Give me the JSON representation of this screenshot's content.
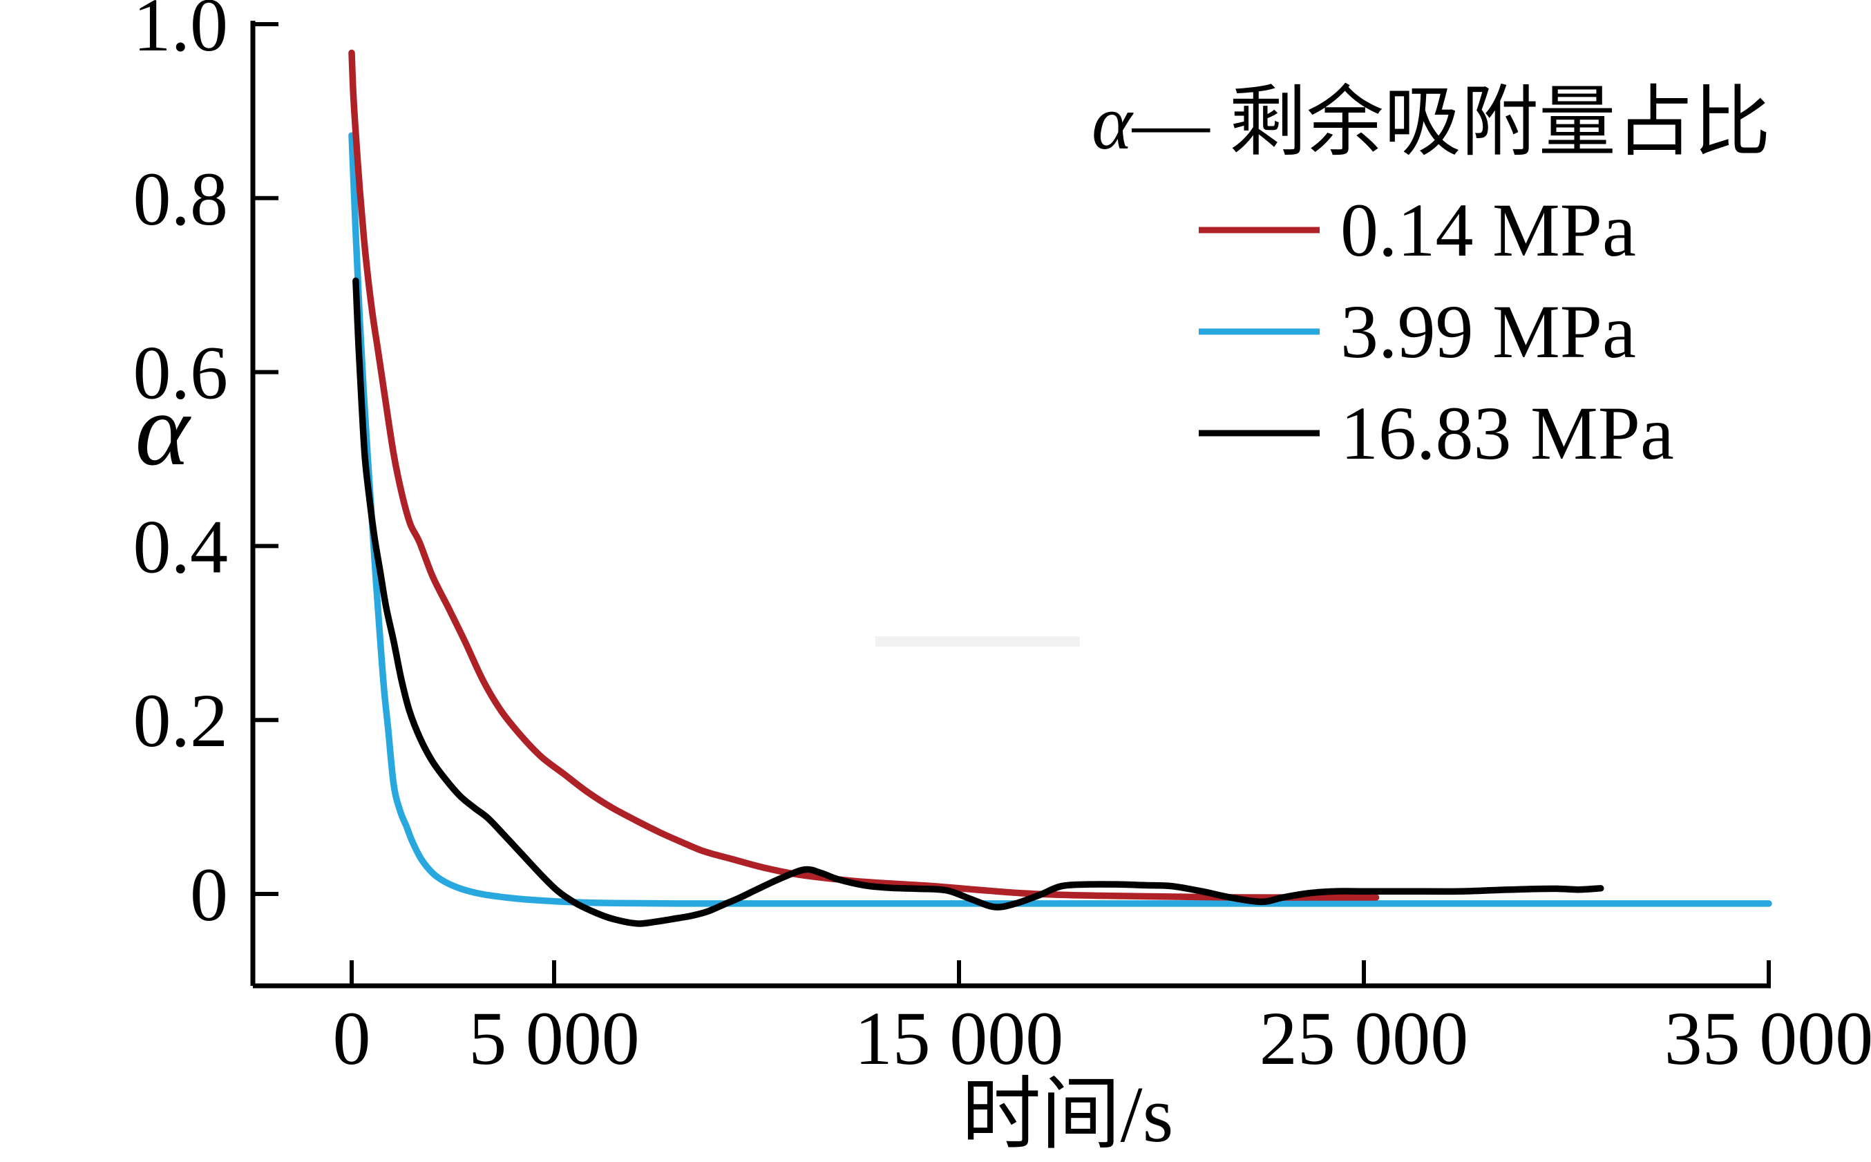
{
  "figure": {
    "background": "#ffffff",
    "axis_color": "#000000",
    "watermark_color": "#f2f2f2"
  },
  "chart_data": {
    "type": "line",
    "title": "",
    "xlabel": "时间/s",
    "ylabel": "α",
    "xlim": [
      -2450,
      35000
    ],
    "ylim": [
      -0.106,
      1.002
    ],
    "grid": false,
    "legend_position": "upper right",
    "legend_title_alpha": "α",
    "legend_title_rest": "— 剩余吸附量占比",
    "x_ticks": [
      {
        "value": 0,
        "label": "0"
      },
      {
        "value": 5000,
        "label": "5 000"
      },
      {
        "value": 15000,
        "label": "15 000"
      },
      {
        "value": 25000,
        "label": "25 000"
      },
      {
        "value": 35000,
        "label": "35 000"
      }
    ],
    "y_ticks": [
      {
        "value": 0,
        "label": "0"
      },
      {
        "value": 0.2,
        "label": "0.2"
      },
      {
        "value": 0.4,
        "label": "0.4"
      },
      {
        "value": 0.6,
        "label": "0.6"
      },
      {
        "value": 0.8,
        "label": "0.8"
      },
      {
        "value": 1.0,
        "label": "1.0"
      }
    ],
    "series": [
      {
        "name": "3.99 MPa",
        "color": "#29a8e0",
        "points": [
          [
            0,
            0.872
          ],
          [
            100,
            0.76
          ],
          [
            200,
            0.66
          ],
          [
            300,
            0.575
          ],
          [
            400,
            0.5
          ],
          [
            500,
            0.43
          ],
          [
            600,
            0.36
          ],
          [
            700,
            0.295
          ],
          [
            800,
            0.235
          ],
          [
            900,
            0.19
          ],
          [
            1040,
            0.125
          ],
          [
            1200,
            0.095
          ],
          [
            1350,
            0.078
          ],
          [
            1500,
            0.06
          ],
          [
            1720,
            0.04
          ],
          [
            2000,
            0.024
          ],
          [
            2300,
            0.014
          ],
          [
            2700,
            0.006
          ],
          [
            3200,
            0.0
          ],
          [
            3800,
            -0.004
          ],
          [
            4500,
            -0.007
          ],
          [
            5500,
            -0.0095
          ],
          [
            6500,
            -0.0105
          ],
          [
            8000,
            -0.011
          ],
          [
            10000,
            -0.011
          ],
          [
            12500,
            -0.011
          ],
          [
            15000,
            -0.011
          ],
          [
            17500,
            -0.011
          ],
          [
            20000,
            -0.011
          ],
          [
            22500,
            -0.011
          ],
          [
            25000,
            -0.011
          ],
          [
            27500,
            -0.011
          ],
          [
            30000,
            -0.011
          ],
          [
            32500,
            -0.011
          ],
          [
            35000,
            -0.011
          ]
        ]
      },
      {
        "name": "0.14 MPa",
        "color": "#ae2127",
        "points": [
          [
            0,
            0.967
          ],
          [
            40,
            0.92
          ],
          [
            100,
            0.875
          ],
          [
            200,
            0.81
          ],
          [
            300,
            0.755
          ],
          [
            400,
            0.71
          ],
          [
            520,
            0.665
          ],
          [
            650,
            0.625
          ],
          [
            800,
            0.578
          ],
          [
            1040,
            0.505
          ],
          [
            1250,
            0.458
          ],
          [
            1450,
            0.425
          ],
          [
            1670,
            0.405
          ],
          [
            2000,
            0.365
          ],
          [
            2400,
            0.328
          ],
          [
            2800,
            0.29
          ],
          [
            3250,
            0.245
          ],
          [
            3700,
            0.21
          ],
          [
            4220,
            0.18
          ],
          [
            4700,
            0.157
          ],
          [
            5240,
            0.138
          ],
          [
            5800,
            0.118
          ],
          [
            6400,
            0.1
          ],
          [
            7000,
            0.085
          ],
          [
            7600,
            0.071
          ],
          [
            8130,
            0.06
          ],
          [
            8700,
            0.049
          ],
          [
            9400,
            0.04
          ],
          [
            10200,
            0.03
          ],
          [
            11070,
            0.022
          ],
          [
            12380,
            0.015
          ],
          [
            13300,
            0.012
          ],
          [
            14350,
            0.009
          ],
          [
            15400,
            0.005
          ],
          [
            16510,
            0.001
          ],
          [
            17530,
            -0.001
          ],
          [
            18500,
            -0.002
          ],
          [
            20000,
            -0.003
          ],
          [
            22000,
            -0.004
          ],
          [
            23500,
            -0.004
          ],
          [
            25300,
            -0.004
          ]
        ]
      },
      {
        "name": "16.83 MPa",
        "color": "#000000",
        "points": [
          [
            100,
            0.705
          ],
          [
            170,
            0.63
          ],
          [
            250,
            0.56
          ],
          [
            330,
            0.5
          ],
          [
            450,
            0.45
          ],
          [
            570,
            0.408
          ],
          [
            700,
            0.372
          ],
          [
            850,
            0.33
          ],
          [
            1040,
            0.29
          ],
          [
            1230,
            0.246
          ],
          [
            1430,
            0.21
          ],
          [
            1700,
            0.178
          ],
          [
            2000,
            0.152
          ],
          [
            2350,
            0.13
          ],
          [
            2690,
            0.112
          ],
          [
            3030,
            0.099
          ],
          [
            3370,
            0.087
          ],
          [
            3800,
            0.066
          ],
          [
            4200,
            0.046
          ],
          [
            4700,
            0.021
          ],
          [
            5100,
            0.003
          ],
          [
            5510,
            -0.01
          ],
          [
            5900,
            -0.019
          ],
          [
            6400,
            -0.028
          ],
          [
            7040,
            -0.034
          ],
          [
            7500,
            -0.032
          ],
          [
            7900,
            -0.029
          ],
          [
            8400,
            -0.025
          ],
          [
            8800,
            -0.02
          ],
          [
            9200,
            -0.012
          ],
          [
            9600,
            -0.004
          ],
          [
            10000,
            0.005
          ],
          [
            10600,
            0.018
          ],
          [
            11190,
            0.028
          ],
          [
            11600,
            0.024
          ],
          [
            12000,
            0.017
          ],
          [
            12650,
            0.01
          ],
          [
            13300,
            0.007
          ],
          [
            14000,
            0.006
          ],
          [
            14700,
            0.004
          ],
          [
            15300,
            -0.006
          ],
          [
            15880,
            -0.015
          ],
          [
            16400,
            -0.011
          ],
          [
            17000,
            -0.001
          ],
          [
            17530,
            0.009
          ],
          [
            18200,
            0.011
          ],
          [
            18900,
            0.011
          ],
          [
            19600,
            0.01
          ],
          [
            20255,
            0.009
          ],
          [
            21000,
            0.003
          ],
          [
            21700,
            -0.004
          ],
          [
            22470,
            -0.009
          ],
          [
            23000,
            -0.004
          ],
          [
            23660,
            0.001
          ],
          [
            24300,
            0.003
          ],
          [
            25000,
            0.003
          ],
          [
            26000,
            0.003
          ],
          [
            27350,
            0.003
          ],
          [
            28300,
            0.0045
          ],
          [
            29000,
            0.0055
          ],
          [
            29800,
            0.006
          ],
          [
            30300,
            0.005
          ],
          [
            30850,
            0.0065
          ]
        ]
      }
    ],
    "legend_entries_order": [
      "0.14 MPa",
      "3.99 MPa",
      "16.83 MPa"
    ]
  }
}
